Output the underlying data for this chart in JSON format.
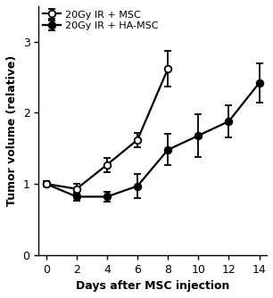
{
  "x_msc": [
    0,
    2,
    4,
    6,
    8
  ],
  "msc_y": [
    1.0,
    0.93,
    1.27,
    1.62,
    2.62
  ],
  "msc_err": [
    0.04,
    0.07,
    0.1,
    0.1,
    0.25
  ],
  "x_hamsc": [
    0,
    2,
    4,
    6,
    8,
    10,
    12,
    14
  ],
  "hamsc_y": [
    1.0,
    0.82,
    0.82,
    0.97,
    1.48,
    1.68,
    1.88,
    2.42
  ],
  "hamsc_err": [
    0.04,
    0.06,
    0.07,
    0.17,
    0.22,
    0.3,
    0.22,
    0.28
  ],
  "xlabel": "Days after MSC injection",
  "ylabel": "Tumor volume (relative)",
  "legend_msc": "20Gy IR + MSC",
  "legend_hamsc": "20Gy IR + HA-MSC",
  "ylim": [
    0,
    3.5
  ],
  "yticks": [
    0,
    1,
    2,
    3
  ],
  "xticks": [
    0,
    2,
    4,
    6,
    8,
    10,
    12,
    14
  ],
  "color": "#000000",
  "linewidth": 1.6,
  "markersize": 5.5,
  "capsize": 3,
  "capthick": 1.3,
  "elinewidth": 1.3
}
